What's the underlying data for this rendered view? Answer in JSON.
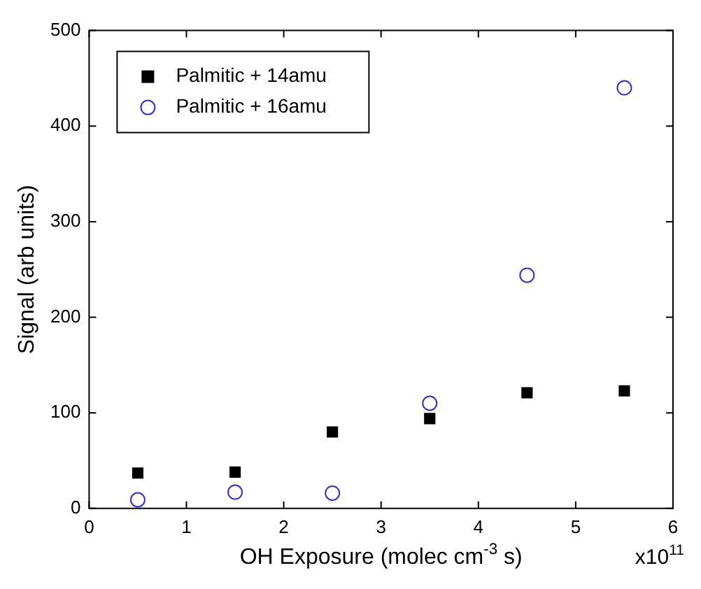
{
  "chart_data": {
    "type": "scatter",
    "xlabel": "OH Exposure (molec cm$^{-3}$ s)",
    "ylabel": "Signal (arb units)",
    "annotations": [
      "x10$^{11}$"
    ],
    "x": [
      0.5,
      1.5,
      2.5,
      3.5,
      4.5,
      5.5
    ],
    "series": [
      {
        "name": "Palmitic + 14amu",
        "color": "#000000",
        "marker": "square",
        "values": [
          37,
          38,
          80,
          94,
          121,
          123
        ]
      },
      {
        "name": "Palmitic + 16amu",
        "color": "#3333cc",
        "marker": "circle",
        "values": [
          9,
          17,
          16,
          110,
          244,
          440
        ]
      }
    ],
    "xlim": [
      0,
      6
    ],
    "xticks": [
      0,
      1,
      2,
      3,
      4,
      5,
      6
    ],
    "ylim": [
      0,
      500
    ],
    "yticks": [
      0,
      100,
      200,
      300,
      400,
      500
    ],
    "grid": false,
    "legend": "top left"
  }
}
